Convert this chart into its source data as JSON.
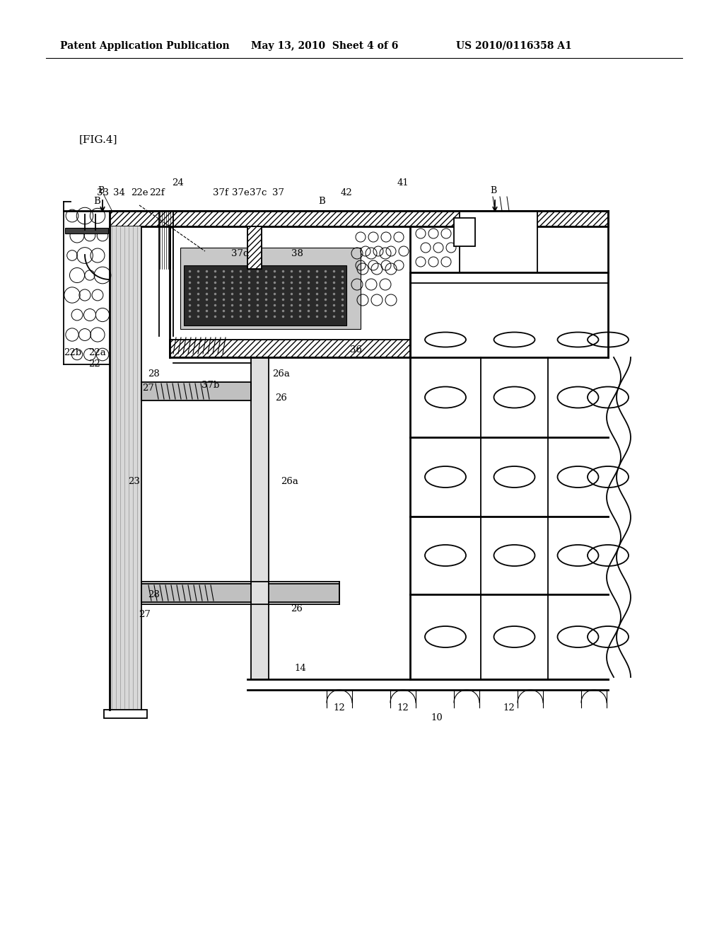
{
  "title_left": "Patent Application Publication",
  "title_mid": "May 13, 2010  Sheet 4 of 6",
  "title_right": "US 2010/0116358 A1",
  "fig_label": "[FIG.4]",
  "bg_color": "#ffffff",
  "line_color": "#000000"
}
